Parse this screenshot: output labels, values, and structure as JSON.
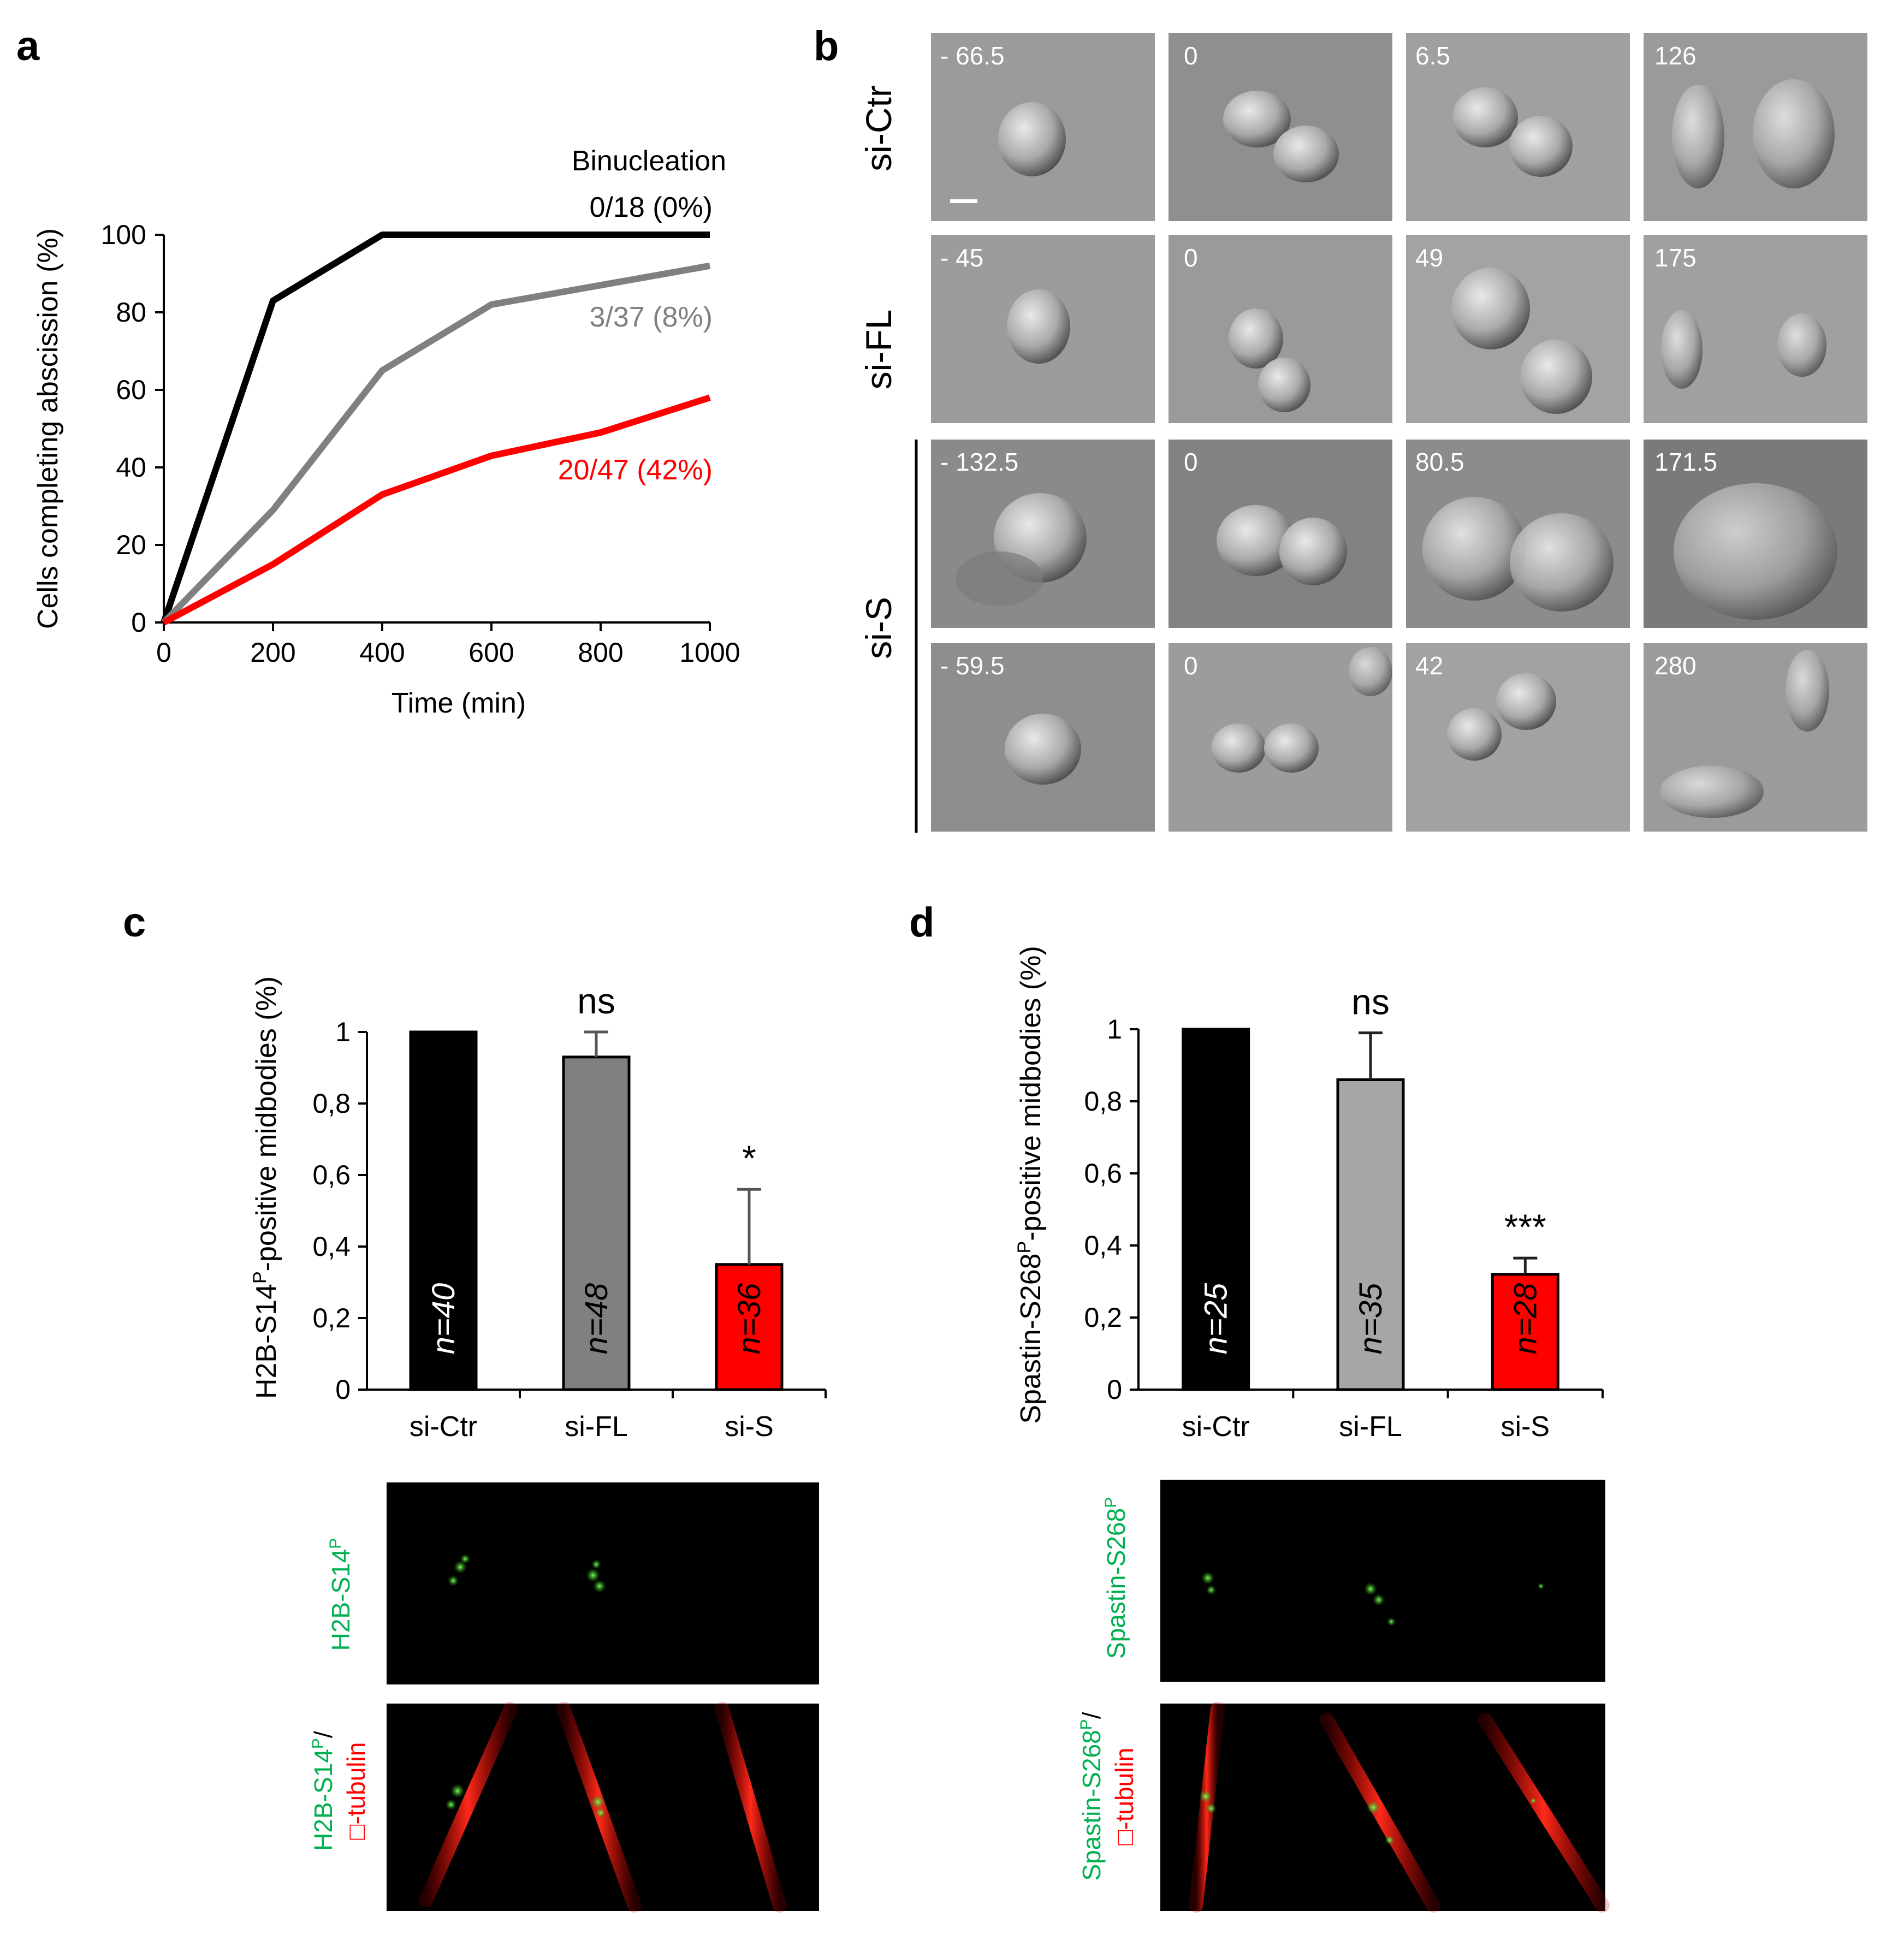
{
  "panels": {
    "a": "a",
    "b": "b",
    "c": "c",
    "d": "d"
  },
  "colors": {
    "si_ctr": "#000000",
    "si_fl_line": "#808080",
    "si_fl_bar_c": "#808080",
    "si_fl_bar_d": "#a6a6a6",
    "si_s": "#ff0000",
    "fluor_green": "#00b050",
    "fluor_red": "#ff0000"
  },
  "panel_a": {
    "chart_data": {
      "type": "line",
      "title": "",
      "xlabel": "Time (min)",
      "ylabel": "Cells completing abscission (%)",
      "xlim": [
        0,
        1000
      ],
      "ylim": [
        0,
        100
      ],
      "xticks": [
        0,
        200,
        400,
        600,
        800,
        1000
      ],
      "xtick_labels": [
        "0",
        "200",
        "400",
        "600",
        "800",
        "1000"
      ],
      "yticks": [
        0,
        20,
        40,
        60,
        80,
        100
      ],
      "ytick_labels": [
        "0",
        "20",
        "40",
        "60",
        "80",
        "100"
      ],
      "x": [
        0,
        200,
        400,
        600,
        800,
        1000
      ],
      "series": [
        {
          "name": "si-Ctr",
          "color": "#000000",
          "values": [
            0,
            83,
            100,
            100,
            100,
            100
          ]
        },
        {
          "name": "si-FL",
          "color": "#808080",
          "values": [
            0,
            29,
            65,
            82,
            87,
            92
          ]
        },
        {
          "name": "si-S",
          "color": "#ff0000",
          "values": [
            0,
            15,
            33,
            43,
            49,
            58
          ]
        }
      ],
      "annotations": {
        "header": "Binucleation",
        "si_ctr": "0/18 (0%)",
        "si_fl": "3/37 (8%)",
        "si_s": "20/47 (42%)"
      }
    }
  },
  "panel_b": {
    "rows": [
      {
        "label": "si-Ctr",
        "times": [
          "- 66.5",
          "0",
          "6.5",
          "126"
        ]
      },
      {
        "label": "si-FL",
        "times": [
          "- 45",
          "0",
          "49",
          "175"
        ]
      },
      {
        "label": "si-S",
        "times": [
          "- 132.5",
          "0",
          "80.5",
          "171.5"
        ]
      },
      {
        "label": "",
        "times": [
          "- 59.5",
          "0",
          "42",
          "280"
        ]
      }
    ]
  },
  "panel_c": {
    "chart_data": {
      "type": "bar",
      "ylabel_main": "H2B-S14",
      "ylabel_sup": "P",
      "ylabel_rest": "-positive midbodies (%)",
      "categories": [
        "si-Ctr",
        "si-FL",
        "si-S"
      ],
      "values": [
        1.0,
        0.93,
        0.35
      ],
      "errors": [
        0.0,
        0.07,
        0.21
      ],
      "n_labels": [
        "n=40",
        "n=48",
        "n=36"
      ],
      "significance": [
        "",
        "ns",
        "*"
      ],
      "ylim": [
        0,
        1
      ],
      "yticks": [
        0,
        0.2,
        0.4,
        0.6,
        0.8,
        1
      ],
      "ytick_labels": [
        "0",
        "0,2",
        "0,4",
        "0,6",
        "0,8",
        "1"
      ]
    },
    "fluor": {
      "top_label_main": "H2B-S14",
      "top_label_sup": "P",
      "bottom_label_green_main": "H2B-S14",
      "bottom_label_green_sup": "P",
      "bottom_label_sep": "/",
      "bottom_label_red": "□-tubulin"
    }
  },
  "panel_d": {
    "chart_data": {
      "type": "bar",
      "ylabel_main": "Spastin-S268",
      "ylabel_sup": "P",
      "ylabel_rest": "-positive midbodies (%)",
      "categories": [
        "si-Ctr",
        "si-FL",
        "si-S"
      ],
      "values": [
        1.0,
        0.86,
        0.32
      ],
      "errors": [
        0.0,
        0.13,
        0.045
      ],
      "n_labels": [
        "n=25",
        "n=35",
        "n=28"
      ],
      "significance": [
        "",
        "ns",
        "***"
      ],
      "ylim": [
        0,
        1
      ],
      "yticks": [
        0,
        0.2,
        0.4,
        0.6,
        0.8,
        1
      ],
      "ytick_labels": [
        "0",
        "0,2",
        "0,4",
        "0,6",
        "0,8",
        "1"
      ]
    },
    "fluor": {
      "top_label_main": "Spastin-S268",
      "top_label_sup": "P",
      "bottom_label_green_main": "Spastin-S268",
      "bottom_label_green_sup": "P",
      "bottom_label_sep": "/",
      "bottom_label_red": "□-tubulin"
    }
  }
}
